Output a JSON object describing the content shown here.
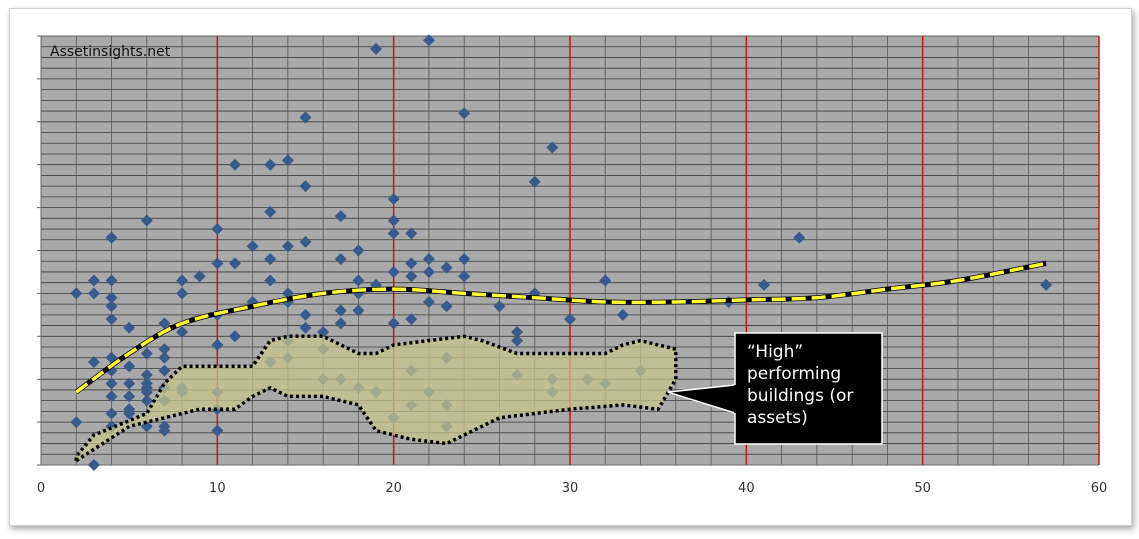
{
  "watermark": "Assetinsights.net",
  "chart_data": {
    "type": "scatter",
    "title": "",
    "xlabel": "",
    "ylabel": "",
    "xlim": [
      0,
      60
    ],
    "x_ticks": [
      "0",
      "10",
      "20",
      "30",
      "40",
      "50",
      "60"
    ],
    "ylim": [
      0,
      100
    ],
    "grid": true,
    "point_color": "#3a5a8c",
    "highlight_color": "#c8c78a",
    "trend_color": "#ffff33",
    "points": [
      {
        "x": 2,
        "y": 40
      },
      {
        "x": 2,
        "y": 10
      },
      {
        "x": 3,
        "y": 43
      },
      {
        "x": 3,
        "y": 40
      },
      {
        "x": 3,
        "y": 24
      },
      {
        "x": 3,
        "y": 0
      },
      {
        "x": 4,
        "y": 53
      },
      {
        "x": 4,
        "y": 43
      },
      {
        "x": 4,
        "y": 39
      },
      {
        "x": 4,
        "y": 37
      },
      {
        "x": 4,
        "y": 34
      },
      {
        "x": 4,
        "y": 25
      },
      {
        "x": 4,
        "y": 22
      },
      {
        "x": 4,
        "y": 19
      },
      {
        "x": 4,
        "y": 16
      },
      {
        "x": 4,
        "y": 12
      },
      {
        "x": 4,
        "y": 9
      },
      {
        "x": 5,
        "y": 32
      },
      {
        "x": 5,
        "y": 23
      },
      {
        "x": 5,
        "y": 19
      },
      {
        "x": 5,
        "y": 16
      },
      {
        "x": 5,
        "y": 13
      },
      {
        "x": 5,
        "y": 12
      },
      {
        "x": 6,
        "y": 57
      },
      {
        "x": 6,
        "y": 26
      },
      {
        "x": 6,
        "y": 21
      },
      {
        "x": 6,
        "y": 19
      },
      {
        "x": 6,
        "y": 18
      },
      {
        "x": 6,
        "y": 17
      },
      {
        "x": 6,
        "y": 15
      },
      {
        "x": 6,
        "y": 9
      },
      {
        "x": 7,
        "y": 33
      },
      {
        "x": 7,
        "y": 27
      },
      {
        "x": 7,
        "y": 25
      },
      {
        "x": 7,
        "y": 22
      },
      {
        "x": 7,
        "y": 18
      },
      {
        "x": 7,
        "y": 15
      },
      {
        "x": 7,
        "y": 9
      },
      {
        "x": 7,
        "y": 8
      },
      {
        "x": 8,
        "y": 43
      },
      {
        "x": 8,
        "y": 40
      },
      {
        "x": 8,
        "y": 31
      },
      {
        "x": 8,
        "y": 18
      },
      {
        "x": 8,
        "y": 17
      },
      {
        "x": 9,
        "y": 44
      },
      {
        "x": 10,
        "y": 55
      },
      {
        "x": 10,
        "y": 47
      },
      {
        "x": 10,
        "y": 35
      },
      {
        "x": 10,
        "y": 28
      },
      {
        "x": 10,
        "y": 17
      },
      {
        "x": 10,
        "y": 13
      },
      {
        "x": 10,
        "y": 8
      },
      {
        "x": 11,
        "y": 70
      },
      {
        "x": 11,
        "y": 47
      },
      {
        "x": 11,
        "y": 30
      },
      {
        "x": 12,
        "y": 51
      },
      {
        "x": 12,
        "y": 38
      },
      {
        "x": 13,
        "y": 70
      },
      {
        "x": 13,
        "y": 59
      },
      {
        "x": 13,
        "y": 48
      },
      {
        "x": 13,
        "y": 43
      },
      {
        "x": 13,
        "y": 24
      },
      {
        "x": 14,
        "y": 71
      },
      {
        "x": 14,
        "y": 51
      },
      {
        "x": 14,
        "y": 40
      },
      {
        "x": 14,
        "y": 38
      },
      {
        "x": 14,
        "y": 29
      },
      {
        "x": 14,
        "y": 25
      },
      {
        "x": 15,
        "y": 81
      },
      {
        "x": 15,
        "y": 65
      },
      {
        "x": 15,
        "y": 52
      },
      {
        "x": 15,
        "y": 35
      },
      {
        "x": 15,
        "y": 32
      },
      {
        "x": 16,
        "y": 31
      },
      {
        "x": 16,
        "y": 27
      },
      {
        "x": 16,
        "y": 20
      },
      {
        "x": 17,
        "y": 58
      },
      {
        "x": 17,
        "y": 48
      },
      {
        "x": 17,
        "y": 36
      },
      {
        "x": 17,
        "y": 33
      },
      {
        "x": 17,
        "y": 20
      },
      {
        "x": 18,
        "y": 50
      },
      {
        "x": 18,
        "y": 43
      },
      {
        "x": 18,
        "y": 40
      },
      {
        "x": 18,
        "y": 36
      },
      {
        "x": 18,
        "y": 18
      },
      {
        "x": 19,
        "y": 97
      },
      {
        "x": 19,
        "y": 42
      },
      {
        "x": 19,
        "y": 17
      },
      {
        "x": 20,
        "y": 62
      },
      {
        "x": 20,
        "y": 57
      },
      {
        "x": 20,
        "y": 54
      },
      {
        "x": 20,
        "y": 45
      },
      {
        "x": 20,
        "y": 33
      },
      {
        "x": 20,
        "y": 11
      },
      {
        "x": 21,
        "y": 54
      },
      {
        "x": 21,
        "y": 47
      },
      {
        "x": 21,
        "y": 44
      },
      {
        "x": 21,
        "y": 34
      },
      {
        "x": 21,
        "y": 22
      },
      {
        "x": 21,
        "y": 14
      },
      {
        "x": 22,
        "y": 99
      },
      {
        "x": 22,
        "y": 48
      },
      {
        "x": 22,
        "y": 45
      },
      {
        "x": 22,
        "y": 38
      },
      {
        "x": 22,
        "y": 17
      },
      {
        "x": 23,
        "y": 46
      },
      {
        "x": 23,
        "y": 37
      },
      {
        "x": 23,
        "y": 25
      },
      {
        "x": 23,
        "y": 14
      },
      {
        "x": 23,
        "y": 9
      },
      {
        "x": 24,
        "y": 82
      },
      {
        "x": 24,
        "y": 48
      },
      {
        "x": 24,
        "y": 44
      },
      {
        "x": 26,
        "y": 37
      },
      {
        "x": 27,
        "y": 31
      },
      {
        "x": 27,
        "y": 29
      },
      {
        "x": 27,
        "y": 21
      },
      {
        "x": 28,
        "y": 66
      },
      {
        "x": 28,
        "y": 40
      },
      {
        "x": 29,
        "y": 74
      },
      {
        "x": 29,
        "y": 20
      },
      {
        "x": 29,
        "y": 17
      },
      {
        "x": 30,
        "y": 34
      },
      {
        "x": 31,
        "y": 20
      },
      {
        "x": 32,
        "y": 43
      },
      {
        "x": 32,
        "y": 19
      },
      {
        "x": 33,
        "y": 35
      },
      {
        "x": 34,
        "y": 22
      },
      {
        "x": 39,
        "y": 38
      },
      {
        "x": 41,
        "y": 42
      },
      {
        "x": 43,
        "y": 53
      },
      {
        "x": 57,
        "y": 42
      }
    ],
    "trendline": [
      {
        "x": 2,
        "y": 17
      },
      {
        "x": 5,
        "y": 26
      },
      {
        "x": 8,
        "y": 33
      },
      {
        "x": 12,
        "y": 37
      },
      {
        "x": 16,
        "y": 40
      },
      {
        "x": 20,
        "y": 41
      },
      {
        "x": 24,
        "y": 40
      },
      {
        "x": 28,
        "y": 39
      },
      {
        "x": 32,
        "y": 38
      },
      {
        "x": 36,
        "y": 38
      },
      {
        "x": 40,
        "y": 38.5
      },
      {
        "x": 44,
        "y": 39
      },
      {
        "x": 48,
        "y": 41
      },
      {
        "x": 52,
        "y": 43
      },
      {
        "x": 57,
        "y": 47
      }
    ],
    "highlight_region": [
      {
        "x": 2,
        "y": 1
      },
      {
        "x": 5,
        "y": 9
      },
      {
        "x": 7,
        "y": 11
      },
      {
        "x": 9,
        "y": 13
      },
      {
        "x": 11,
        "y": 13
      },
      {
        "x": 12,
        "y": 16
      },
      {
        "x": 13,
        "y": 18
      },
      {
        "x": 14,
        "y": 16
      },
      {
        "x": 16,
        "y": 16
      },
      {
        "x": 18,
        "y": 14
      },
      {
        "x": 19,
        "y": 8
      },
      {
        "x": 21,
        "y": 6
      },
      {
        "x": 23,
        "y": 5
      },
      {
        "x": 25,
        "y": 9
      },
      {
        "x": 26,
        "y": 11
      },
      {
        "x": 28,
        "y": 12
      },
      {
        "x": 30,
        "y": 13
      },
      {
        "x": 33,
        "y": 14
      },
      {
        "x": 35,
        "y": 13
      },
      {
        "x": 36,
        "y": 20
      },
      {
        "x": 36,
        "y": 27
      },
      {
        "x": 34,
        "y": 29
      },
      {
        "x": 33,
        "y": 28
      },
      {
        "x": 32,
        "y": 26
      },
      {
        "x": 30,
        "y": 26
      },
      {
        "x": 27,
        "y": 26
      },
      {
        "x": 25,
        "y": 29
      },
      {
        "x": 24,
        "y": 30
      },
      {
        "x": 22,
        "y": 29
      },
      {
        "x": 20,
        "y": 28
      },
      {
        "x": 19,
        "y": 26
      },
      {
        "x": 18,
        "y": 26
      },
      {
        "x": 16,
        "y": 30
      },
      {
        "x": 14,
        "y": 30
      },
      {
        "x": 13,
        "y": 29
      },
      {
        "x": 12,
        "y": 23
      },
      {
        "x": 10,
        "y": 23
      },
      {
        "x": 8,
        "y": 23
      },
      {
        "x": 7,
        "y": 19
      },
      {
        "x": 6,
        "y": 12
      },
      {
        "x": 3,
        "y": 7
      },
      {
        "x": 2,
        "y": 2
      }
    ],
    "annotation": [
      "“High”",
      "performing",
      "buildings (or",
      "assets)"
    ]
  }
}
